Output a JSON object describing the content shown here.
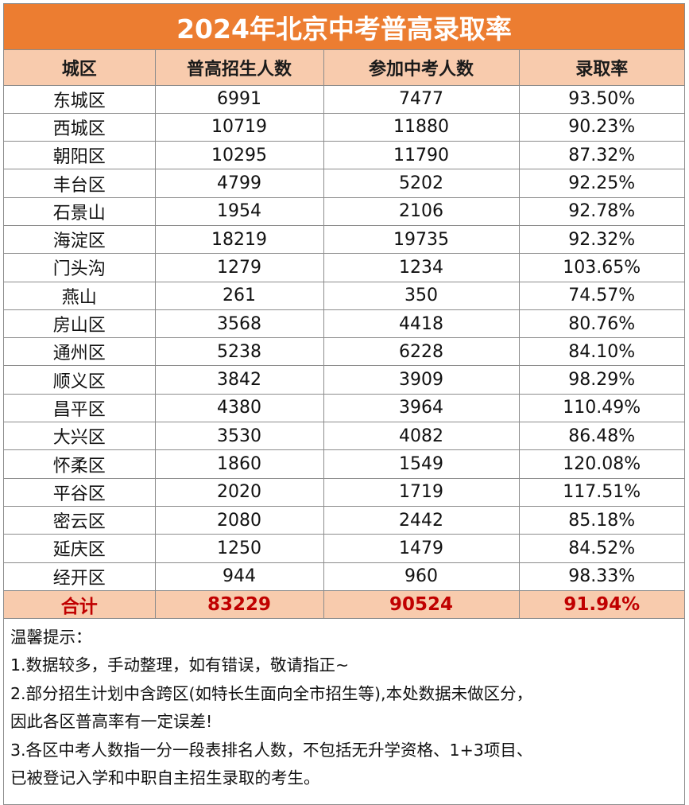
{
  "title": "2024年北京中考普高录取率",
  "colors": {
    "title_bg": "#ec7d31",
    "header_bg": "#f8cbad",
    "total_text": "#c00000"
  },
  "table": {
    "headers": [
      "城区",
      "普高招生人数",
      "参加中考人数",
      "录取率"
    ],
    "rows": [
      [
        "东城区",
        "6991",
        "7477",
        "93.50%"
      ],
      [
        "西城区",
        "10719",
        "11880",
        "90.23%"
      ],
      [
        "朝阳区",
        "10295",
        "11790",
        "87.32%"
      ],
      [
        "丰台区",
        "4799",
        "5202",
        "92.25%"
      ],
      [
        "石景山",
        "1954",
        "2106",
        "92.78%"
      ],
      [
        "海淀区",
        "18219",
        "19735",
        "92.32%"
      ],
      [
        "门头沟",
        "1279",
        "1234",
        "103.65%"
      ],
      [
        "燕山",
        "261",
        "350",
        "74.57%"
      ],
      [
        "房山区",
        "3568",
        "4418",
        "80.76%"
      ],
      [
        "通州区",
        "5238",
        "6228",
        "84.10%"
      ],
      [
        "顺义区",
        "3842",
        "3909",
        "98.29%"
      ],
      [
        "昌平区",
        "4380",
        "3964",
        "110.49%"
      ],
      [
        "大兴区",
        "3530",
        "4082",
        "86.48%"
      ],
      [
        "怀柔区",
        "1860",
        "1549",
        "120.08%"
      ],
      [
        "平谷区",
        "2020",
        "1719",
        "117.51%"
      ],
      [
        "密云区",
        "2080",
        "2442",
        "85.18%"
      ],
      [
        "延庆区",
        "1250",
        "1479",
        "84.52%"
      ],
      [
        "经开区",
        "944",
        "960",
        "98.33%"
      ]
    ],
    "total": [
      "合计",
      "83229",
      "90524",
      "91.94%"
    ]
  },
  "notes": {
    "heading": "温馨提示：",
    "lines": [
      "1.数据较多，手动整理，如有错误，敬请指正~",
      "2.部分招生计划中含跨区(如特长生面向全市招生等),本处数据未做区分，",
      "因此各区普高率有一定误差!",
      "3.各区中考人数指一分一段表排名人数，不包括无升学资格、1+3项目、",
      "已被登记入学和中职自主招生录取的考生。"
    ]
  },
  "chart_data": {
    "type": "table",
    "title": "2024年北京中考普高录取率",
    "columns": [
      "城区",
      "普高招生人数",
      "参加中考人数",
      "录取率"
    ],
    "categories": [
      "东城区",
      "西城区",
      "朝阳区",
      "丰台区",
      "石景山",
      "海淀区",
      "门头沟",
      "燕山",
      "房山区",
      "通州区",
      "顺义区",
      "昌平区",
      "大兴区",
      "怀柔区",
      "平谷区",
      "密云区",
      "延庆区",
      "经开区"
    ],
    "series": [
      {
        "name": "普高招生人数",
        "values": [
          6991,
          10719,
          10295,
          4799,
          1954,
          18219,
          1279,
          261,
          3568,
          5238,
          3842,
          4380,
          3530,
          1860,
          2020,
          2080,
          1250,
          944
        ]
      },
      {
        "name": "参加中考人数",
        "values": [
          7477,
          11880,
          11790,
          5202,
          2106,
          19735,
          1234,
          350,
          4418,
          6228,
          3909,
          3964,
          4082,
          1549,
          1719,
          2442,
          1479,
          960
        ]
      },
      {
        "name": "录取率(%)",
        "values": [
          93.5,
          90.23,
          87.32,
          92.25,
          92.78,
          92.32,
          103.65,
          74.57,
          80.76,
          84.1,
          98.29,
          110.49,
          86.48,
          120.08,
          117.51,
          85.18,
          84.52,
          98.33
        ]
      }
    ],
    "total": {
      "普高招生人数": 83229,
      "参加中考人数": 90524,
      "录取率(%)": 91.94
    }
  }
}
